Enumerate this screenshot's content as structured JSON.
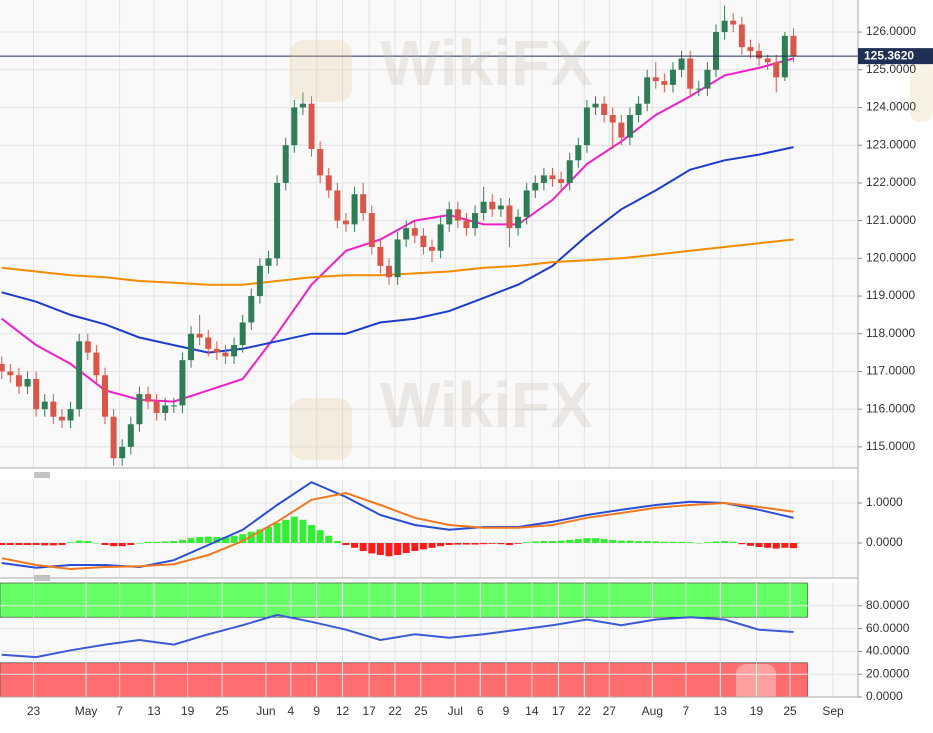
{
  "watermark": "WikiFX",
  "chart_data": [
    {
      "type": "candlestick",
      "open": [
        117.2,
        117.0,
        116.9,
        116.6,
        116.8,
        116.0,
        116.2,
        115.8,
        115.7,
        116.0,
        117.8,
        117.5,
        116.9,
        115.8,
        114.7,
        115.0,
        115.6,
        116.4,
        116.2,
        115.9,
        116.1,
        116.1,
        117.3,
        118.0,
        117.9,
        117.6,
        117.5,
        117.4,
        117.7,
        118.3,
        119.0,
        119.8,
        120.0,
        122.0,
        123.0,
        124.0,
        124.1,
        122.9,
        122.2,
        121.8,
        121.0,
        120.9,
        121.7,
        121.2,
        120.3,
        119.8,
        119.5,
        120.5,
        120.8,
        120.6,
        120.3,
        120.2,
        120.9,
        121.3,
        121.0,
        120.8,
        121.2,
        121.5,
        121.3,
        121.4,
        120.8,
        121.1,
        121.8,
        122.0,
        122.2,
        122.1,
        122.0,
        122.6,
        123.0,
        124.0,
        124.1,
        123.8,
        123.6,
        123.2,
        123.8,
        124.1,
        124.8,
        124.7,
        124.6,
        125.0,
        125.3,
        124.5,
        124.5,
        125.0,
        126.0,
        126.3,
        126.2,
        125.6,
        125.5,
        125.3,
        125.2,
        124.8,
        125.9
      ],
      "high": [
        117.4,
        117.2,
        117.1,
        117.0,
        117.0,
        116.4,
        116.4,
        116.0,
        116.2,
        118.0,
        118.0,
        117.7,
        117.1,
        116.0,
        115.2,
        115.8,
        116.6,
        116.6,
        116.4,
        116.3,
        116.3,
        117.5,
        118.2,
        118.5,
        118.1,
        117.8,
        117.7,
        117.9,
        118.5,
        119.2,
        120.0,
        120.2,
        122.2,
        123.2,
        124.2,
        124.4,
        124.3,
        123.1,
        122.4,
        122.0,
        121.2,
        121.9,
        122.0,
        121.4,
        120.5,
        120.0,
        120.7,
        121.0,
        121.0,
        120.8,
        120.5,
        121.1,
        121.5,
        121.5,
        121.2,
        121.4,
        121.9,
        121.7,
        121.6,
        121.6,
        121.3,
        122.0,
        122.2,
        122.4,
        122.4,
        122.3,
        122.8,
        123.2,
        124.2,
        124.3,
        124.3,
        124.0,
        123.8,
        124.0,
        124.3,
        125.0,
        125.2,
        124.9,
        125.2,
        125.5,
        125.5,
        124.7,
        125.2,
        126.2,
        126.7,
        126.5,
        126.4,
        125.8,
        125.7,
        125.4,
        125.4,
        126.0,
        126.1
      ],
      "low": [
        116.8,
        116.7,
        116.4,
        116.4,
        115.8,
        115.8,
        115.6,
        115.5,
        115.5,
        115.8,
        117.3,
        116.7,
        115.6,
        114.5,
        114.5,
        114.8,
        115.4,
        116.0,
        115.7,
        115.7,
        115.9,
        115.9,
        117.1,
        117.7,
        117.4,
        117.3,
        117.2,
        117.2,
        117.5,
        118.1,
        118.8,
        119.6,
        119.8,
        121.8,
        122.8,
        123.8,
        122.7,
        122.0,
        121.6,
        120.8,
        120.7,
        120.7,
        121.0,
        120.1,
        119.6,
        119.3,
        119.3,
        120.3,
        120.4,
        120.1,
        119.9,
        120.0,
        120.7,
        120.8,
        120.6,
        120.6,
        121.0,
        121.1,
        121.1,
        120.3,
        120.6,
        120.9,
        121.6,
        121.8,
        121.9,
        121.8,
        121.8,
        122.4,
        122.8,
        123.8,
        123.6,
        122.9,
        123.0,
        123.0,
        123.6,
        123.9,
        124.5,
        124.4,
        124.4,
        124.8,
        124.3,
        124.3,
        124.3,
        124.8,
        125.8,
        126.0,
        125.4,
        125.3,
        125.1,
        125.0,
        124.4,
        124.7,
        125.2
      ],
      "close": [
        117.0,
        116.9,
        116.6,
        116.8,
        116.0,
        116.2,
        115.8,
        115.7,
        116.0,
        117.8,
        117.5,
        116.9,
        115.8,
        114.7,
        115.0,
        115.6,
        116.4,
        116.2,
        115.9,
        116.1,
        116.1,
        117.3,
        118.0,
        117.9,
        117.6,
        117.5,
        117.4,
        117.7,
        118.3,
        119.0,
        119.8,
        120.0,
        122.0,
        123.0,
        124.0,
        124.1,
        122.9,
        122.2,
        121.8,
        121.0,
        120.9,
        121.7,
        121.2,
        120.3,
        119.8,
        119.5,
        120.5,
        120.8,
        120.6,
        120.3,
        120.2,
        120.9,
        121.3,
        121.0,
        120.8,
        121.2,
        121.5,
        121.3,
        121.4,
        120.8,
        121.1,
        121.8,
        122.0,
        122.2,
        122.1,
        122.0,
        122.6,
        123.0,
        124.0,
        124.1,
        123.8,
        123.6,
        123.2,
        123.8,
        124.1,
        124.8,
        124.7,
        124.6,
        125.0,
        125.3,
        124.5,
        124.5,
        125.0,
        126.0,
        126.3,
        126.2,
        125.6,
        125.5,
        125.3,
        125.2,
        124.8,
        125.9,
        125.362
      ],
      "up_color": "#2f7d57",
      "down_color": "#d9574a",
      "line_x": [
        0,
        4,
        8,
        12,
        16,
        20,
        24,
        28,
        32,
        36,
        40,
        44,
        48,
        52,
        56,
        60,
        64,
        68,
        72,
        76,
        80,
        84,
        88,
        92
      ],
      "series": [
        {
          "color": "#f020c8",
          "values": [
            118.4,
            117.7,
            117.2,
            116.5,
            116.25,
            116.2,
            116.5,
            116.8,
            118.0,
            119.3,
            120.2,
            120.5,
            121.0,
            121.15,
            120.9,
            120.9,
            121.55,
            122.5,
            123.1,
            123.8,
            124.3,
            124.85,
            125.05,
            125.3
          ]
        },
        {
          "color": "#1c3ccc",
          "values": [
            119.1,
            118.85,
            118.5,
            118.25,
            117.9,
            117.7,
            117.5,
            117.6,
            117.8,
            118.0,
            118.0,
            118.3,
            118.4,
            118.6,
            118.95,
            119.3,
            119.8,
            120.6,
            121.3,
            121.8,
            122.35,
            122.6,
            122.75,
            122.95
          ]
        },
        {
          "color": "#f28c00",
          "values": [
            119.75,
            119.65,
            119.55,
            119.5,
            119.4,
            119.35,
            119.3,
            119.3,
            119.4,
            119.5,
            119.55,
            119.55,
            119.6,
            119.65,
            119.75,
            119.8,
            119.9,
            119.95,
            120.0,
            120.1,
            120.2,
            120.3,
            120.4,
            120.5
          ]
        }
      ],
      "last_price": {
        "value": 125.362,
        "label": "125.3620"
      },
      "ylim": [
        114.44,
        126.85
      ],
      "yticks": [
        {
          "value": 115,
          "label": "115.0000"
        },
        {
          "value": 116,
          "label": "116.0000"
        },
        {
          "value": 117,
          "label": "117.0000"
        },
        {
          "value": 118,
          "label": "118.0000"
        },
        {
          "value": 119,
          "label": "119.0000"
        },
        {
          "value": 120,
          "label": "120.0000"
        },
        {
          "value": 121,
          "label": "121.0000"
        },
        {
          "value": 122,
          "label": "122.0000"
        },
        {
          "value": 123,
          "label": "123.0000"
        },
        {
          "value": 124,
          "label": "124.0000"
        },
        {
          "value": 125,
          "label": "125.0000"
        },
        {
          "value": 126,
          "label": "126.0000"
        }
      ]
    },
    {
      "type": "bar",
      "values": [
        -0.05,
        -0.05,
        -0.05,
        -0.05,
        -0.05,
        -0.06,
        -0.06,
        -0.05,
        0.02,
        0.06,
        0.05,
        0.0,
        -0.05,
        -0.08,
        -0.08,
        -0.05,
        0.0,
        0.03,
        0.03,
        0.04,
        0.05,
        0.08,
        0.12,
        0.15,
        0.16,
        0.15,
        0.15,
        0.18,
        0.22,
        0.28,
        0.34,
        0.4,
        0.5,
        0.58,
        0.66,
        0.58,
        0.45,
        0.32,
        0.18,
        0.05,
        -0.05,
        -0.12,
        -0.2,
        -0.26,
        -0.3,
        -0.33,
        -0.3,
        -0.25,
        -0.2,
        -0.16,
        -0.12,
        -0.08,
        -0.05,
        -0.04,
        -0.04,
        -0.04,
        -0.03,
        -0.02,
        -0.03,
        -0.05,
        -0.02,
        0.02,
        0.04,
        0.05,
        0.05,
        0.06,
        0.08,
        0.1,
        0.12,
        0.12,
        0.1,
        0.08,
        0.06,
        0.06,
        0.05,
        0.05,
        0.04,
        0.03,
        0.03,
        0.03,
        0.02,
        0.0,
        0.02,
        0.04,
        0.05,
        0.03,
        -0.03,
        -0.07,
        -0.1,
        -0.12,
        -0.14,
        -0.12,
        -0.13
      ],
      "pos_color": "#33ee33",
      "neg_color": "#ff1a1a",
      "line_x": [
        0,
        4,
        8,
        12,
        16,
        20,
        24,
        28,
        32,
        36,
        40,
        44,
        48,
        52,
        56,
        60,
        64,
        68,
        72,
        76,
        80,
        84,
        88,
        92
      ],
      "series": [
        {
          "color": "#2a4ed8",
          "values": [
            -0.5,
            -0.62,
            -0.55,
            -0.55,
            -0.6,
            -0.43,
            -0.05,
            0.33,
            0.95,
            1.52,
            1.15,
            0.7,
            0.45,
            0.33,
            0.4,
            0.4,
            0.53,
            0.7,
            0.83,
            0.95,
            1.03,
            1.0,
            0.83,
            0.63
          ]
        },
        {
          "color": "#f07820",
          "values": [
            -0.38,
            -0.55,
            -0.65,
            -0.6,
            -0.58,
            -0.53,
            -0.3,
            0.05,
            0.53,
            1.08,
            1.25,
            0.95,
            0.63,
            0.45,
            0.38,
            0.38,
            0.45,
            0.63,
            0.75,
            0.88,
            0.95,
            1.0,
            0.9,
            0.78
          ]
        }
      ],
      "ylim": [
        -0.875,
        1.575
      ],
      "yticks": [
        {
          "value": 0,
          "label": "0.0000"
        },
        {
          "value": 1,
          "label": "1.0000"
        }
      ]
    },
    {
      "type": "line",
      "line_x": [
        0,
        4,
        8,
        12,
        16,
        20,
        24,
        28,
        32,
        36,
        40,
        44,
        48,
        52,
        56,
        60,
        64,
        68,
        72,
        76,
        80,
        84,
        88,
        92
      ],
      "series": [
        {
          "color": "#3a5ad6",
          "values": [
            37,
            35,
            41,
            46,
            50,
            46,
            55,
            63,
            72,
            66,
            59,
            50,
            55,
            52,
            55,
            59,
            63,
            68,
            63,
            68,
            70,
            68,
            59,
            57
          ]
        }
      ],
      "bands": [
        {
          "from": 70,
          "to": 100,
          "color": "#66ff66"
        },
        {
          "from": 0,
          "to": 30,
          "color": "#ff6e6e"
        }
      ],
      "ylim": [
        0,
        100
      ],
      "yticks": [
        {
          "value": 0,
          "label": "0.0000"
        },
        {
          "value": 20,
          "label": "20.0000"
        },
        {
          "value": 40,
          "label": "40.0000"
        },
        {
          "value": 60,
          "label": "60.0000"
        },
        {
          "value": 80,
          "label": "80.0000"
        }
      ],
      "xlim": [
        -0.2,
        99.5
      ],
      "xticks": [
        {
          "value": 3.7,
          "label": "23"
        },
        {
          "value": 9.8,
          "label": "May"
        },
        {
          "value": 13.7,
          "label": "7"
        },
        {
          "value": 17.7,
          "label": "13"
        },
        {
          "value": 21.6,
          "label": "19"
        },
        {
          "value": 25.6,
          "label": "25"
        },
        {
          "value": 30.7,
          "label": "Jun"
        },
        {
          "value": 33.6,
          "label": "4"
        },
        {
          "value": 36.6,
          "label": "9"
        },
        {
          "value": 39.6,
          "label": "12"
        },
        {
          "value": 42.7,
          "label": "17"
        },
        {
          "value": 45.7,
          "label": "22"
        },
        {
          "value": 48.7,
          "label": "25"
        },
        {
          "value": 52.7,
          "label": "Jul"
        },
        {
          "value": 55.6,
          "label": "6"
        },
        {
          "value": 58.6,
          "label": "9"
        },
        {
          "value": 61.6,
          "label": "14"
        },
        {
          "value": 64.7,
          "label": "17"
        },
        {
          "value": 67.7,
          "label": "22"
        },
        {
          "value": 70.6,
          "label": "27"
        },
        {
          "value": 75.6,
          "label": "Aug"
        },
        {
          "value": 79.5,
          "label": "7"
        },
        {
          "value": 83.5,
          "label": "13"
        },
        {
          "value": 87.7,
          "label": "19"
        },
        {
          "value": 91.6,
          "label": "25"
        },
        {
          "value": 96.6,
          "label": "Sep"
        }
      ]
    }
  ]
}
